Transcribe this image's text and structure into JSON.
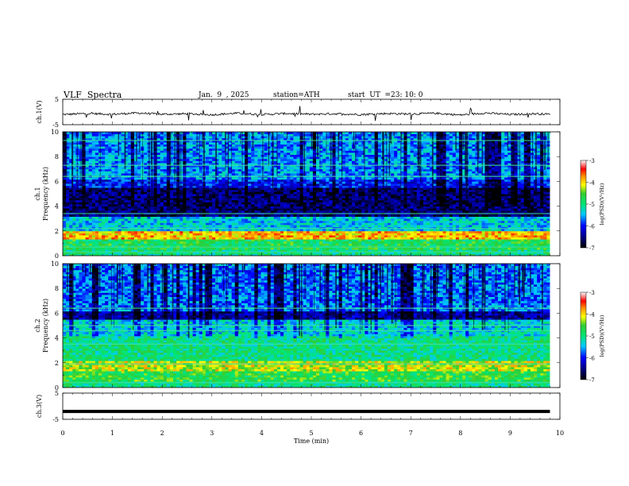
{
  "header": {
    "title": "VLF  Spectra",
    "date": "Jan.  9  , 2025",
    "station": "station=ATH",
    "start_label": "start  UT  =",
    "start_value": "23: 10: 0"
  },
  "chart_data": [
    {
      "type": "line",
      "name": "ch1-waveform",
      "ylabel": "ch.1(V)",
      "ylim": [
        -5,
        5
      ],
      "yticks": [
        "5",
        "-5"
      ],
      "xlim": [
        0,
        10
      ],
      "x": [
        0,
        0.5,
        1,
        1.5,
        2,
        2.5,
        3,
        3.5,
        4,
        4.5,
        5,
        5.5,
        6,
        6.5,
        7,
        7.5,
        8,
        8.5,
        9,
        9.5,
        9.8
      ],
      "y": [
        -1.0,
        -0.6,
        -0.9,
        -0.4,
        -0.9,
        -0.7,
        -1.1,
        -0.5,
        -1.0,
        -0.6,
        -0.9,
        -0.7,
        -1.0,
        -0.6,
        -0.8,
        -0.5,
        -1.2,
        -0.4,
        -1.0,
        -0.7,
        -0.9
      ]
    },
    {
      "type": "heatmap",
      "name": "ch1-spectrogram",
      "ylabel": "ch.1",
      "ylabel2": "Frequency  (kHz)",
      "ylim": [
        0,
        10
      ],
      "yticks": [
        "10",
        "8",
        "6",
        "4",
        "2",
        "0"
      ],
      "xlim": [
        0,
        10
      ],
      "colorbar": {
        "label": "log(PSD)(V²/Hz)",
        "ticks": [
          "-3",
          "-4",
          "-5",
          "-6",
          "-7"
        ],
        "range": [
          -7,
          -3
        ]
      },
      "bands": [
        {
          "f0": 0,
          "f1": 0.5,
          "level": -5.0
        },
        {
          "f0": 0.5,
          "f1": 1.4,
          "level": -4.8
        },
        {
          "f0": 1.4,
          "f1": 2.0,
          "level": -3.9
        },
        {
          "f0": 2.0,
          "f1": 3.2,
          "level": -5.4
        },
        {
          "f0": 3.2,
          "f1": 5.5,
          "level": -6.6
        },
        {
          "f0": 5.5,
          "f1": 6.2,
          "level": -6.0
        },
        {
          "f0": 6.2,
          "f1": 10.0,
          "level": -5.6
        }
      ],
      "lines_khz": [
        0.3,
        0.7,
        2.2,
        3.4,
        6.4,
        7.3,
        9.3
      ]
    },
    {
      "type": "heatmap",
      "name": "ch2-spectrogram",
      "ylabel": "ch.2",
      "ylabel2": "Frequency  (kHz)",
      "ylim": [
        0,
        10
      ],
      "yticks": [
        "10",
        "8",
        "6",
        "4",
        "2",
        "0"
      ],
      "xlim": [
        0,
        10
      ],
      "colorbar": {
        "label": "log(PSD)(V²/Hz)",
        "ticks": [
          "-3",
          "-4",
          "-5",
          "-6",
          "-7"
        ],
        "range": [
          -7,
          -3
        ]
      },
      "bands": [
        {
          "f0": 0,
          "f1": 0.5,
          "level": -5.0
        },
        {
          "f0": 0.5,
          "f1": 1.3,
          "level": -4.7
        },
        {
          "f0": 1.3,
          "f1": 2.2,
          "level": -4.2
        },
        {
          "f0": 2.2,
          "f1": 4.2,
          "level": -5.0
        },
        {
          "f0": 4.2,
          "f1": 5.5,
          "level": -5.3
        },
        {
          "f0": 5.5,
          "f1": 6.2,
          "level": -6.4
        },
        {
          "f0": 6.2,
          "f1": 10.0,
          "level": -5.7
        }
      ],
      "lines_khz": [
        0.4,
        1.9,
        3.5,
        4.6,
        5.0,
        6.4
      ]
    },
    {
      "type": "line",
      "name": "ch3-waveform",
      "ylabel": "ch.3(V)",
      "ylim": [
        -5,
        5
      ],
      "yticks": [
        "5",
        "-5"
      ],
      "xlim": [
        0,
        10
      ],
      "x": [
        0,
        9.8
      ],
      "y": [
        -2.0,
        -2.0
      ],
      "xlabel": "Time  (min)",
      "xticks": [
        "0",
        "1",
        "2",
        "3",
        "4",
        "5",
        "6",
        "7",
        "8",
        "9",
        "10"
      ]
    }
  ]
}
